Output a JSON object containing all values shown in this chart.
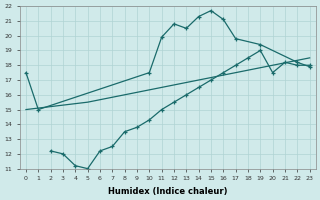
{
  "xlabel": "Humidex (Indice chaleur)",
  "xlim": [
    -0.5,
    23.5
  ],
  "ylim": [
    11,
    22
  ],
  "xticks": [
    0,
    1,
    2,
    3,
    4,
    5,
    6,
    7,
    8,
    9,
    10,
    11,
    12,
    13,
    14,
    15,
    16,
    17,
    18,
    19,
    20,
    21,
    22,
    23
  ],
  "yticks": [
    11,
    12,
    13,
    14,
    15,
    16,
    17,
    18,
    19,
    20,
    21,
    22
  ],
  "bg_color": "#d0eaea",
  "line_color": "#1a6b6b",
  "grid_color": "#b0d4d4",
  "line1_x": [
    0,
    1,
    2,
    3,
    4,
    5,
    6,
    7,
    8,
    9,
    10,
    11,
    12,
    13,
    14,
    15,
    16,
    17,
    18,
    19,
    20,
    21,
    22,
    23
  ],
  "line1_y": [
    17.5,
    15.0,
    null,
    null,
    null,
    null,
    null,
    null,
    null,
    null,
    17.5,
    19.9,
    20.8,
    20.5,
    21.3,
    21.7,
    21.1,
    19.8,
    null,
    19.4,
    null,
    null,
    18.2,
    17.9
  ],
  "line2_x": [
    0,
    2,
    5,
    8,
    11,
    14,
    17,
    20,
    23
  ],
  "line2_y": [
    15.0,
    15.2,
    15.5,
    16.0,
    16.5,
    17.0,
    17.5,
    18.0,
    18.5
  ],
  "line3_x": [
    2,
    3,
    4,
    5,
    6,
    7,
    8,
    9,
    10,
    11,
    12,
    13,
    14,
    15,
    16,
    17,
    18,
    19,
    20,
    21,
    22,
    23
  ],
  "line3_y": [
    12.2,
    12.0,
    11.2,
    11.0,
    12.2,
    12.5,
    13.5,
    13.8,
    14.3,
    15.0,
    15.5,
    16.0,
    16.5,
    17.0,
    17.5,
    18.0,
    18.5,
    19.0,
    17.5,
    18.2,
    18.0,
    18.0
  ]
}
